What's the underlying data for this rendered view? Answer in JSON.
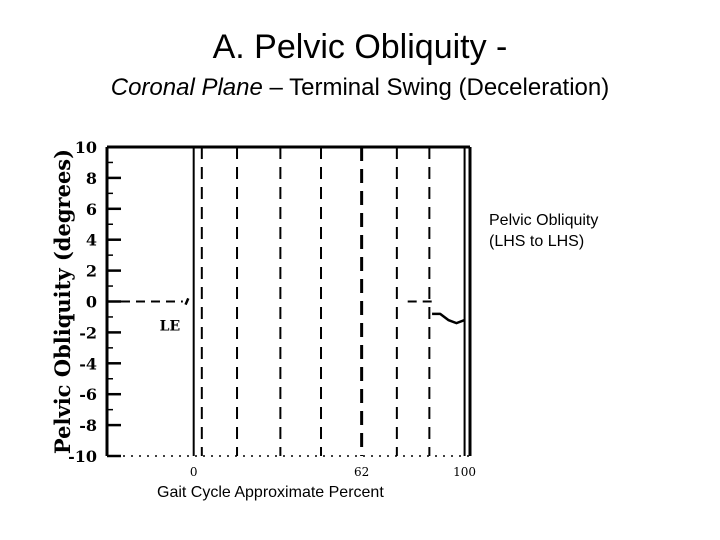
{
  "slide": {
    "title": "A. Pelvic Obliquity -",
    "subtitle_italic": "Coronal Plane",
    "subtitle_rest": " – Terminal Swing (Deceleration)",
    "side_label_line1": "Pelvic Obliquity",
    "side_label_line2": "(LHS to LHS)",
    "x_axis_title": "Gait Cycle Approximate Percent"
  },
  "chart_data": {
    "type": "line",
    "title": "",
    "xlabel": "",
    "ylabel": "Pelvic Obliquity (degrees)",
    "xlim": [
      -32,
      102
    ],
    "ylim": [
      -10,
      10
    ],
    "y_ticks": [
      10,
      8,
      6,
      4,
      2,
      0,
      -2,
      -4,
      -6,
      -8,
      -10
    ],
    "x_tick_labels": [
      {
        "x": 0,
        "label": "0"
      },
      {
        "x": 62,
        "label": "62"
      },
      {
        "x": 100,
        "label": "100"
      }
    ],
    "annotation": {
      "text": "LE",
      "x": -5,
      "y": -1.5
    },
    "zero_reference": {
      "y": 0,
      "dashed": true
    },
    "vertical_lines": [
      {
        "x": 0,
        "style": "solid"
      },
      {
        "x": 3,
        "style": "dashed"
      },
      {
        "x": 16,
        "style": "dashed"
      },
      {
        "x": 32,
        "style": "dashed"
      },
      {
        "x": 47,
        "style": "dashed"
      },
      {
        "x": 62,
        "style": "bold-dashed"
      },
      {
        "x": 75,
        "style": "dashed"
      },
      {
        "x": 87,
        "style": "dashed"
      },
      {
        "x": 100,
        "style": "solid"
      }
    ],
    "series": [
      {
        "color": "#000000",
        "segments": [
          {
            "x": [
              -3,
              -2
            ],
            "y": [
              -0.2,
              0.2
            ]
          },
          {
            "x": [
              88,
              91,
              94,
              97,
              100
            ],
            "y": [
              -0.8,
              -0.8,
              -1.2,
              -1.4,
              -1.2
            ]
          }
        ]
      }
    ],
    "grid": false
  }
}
